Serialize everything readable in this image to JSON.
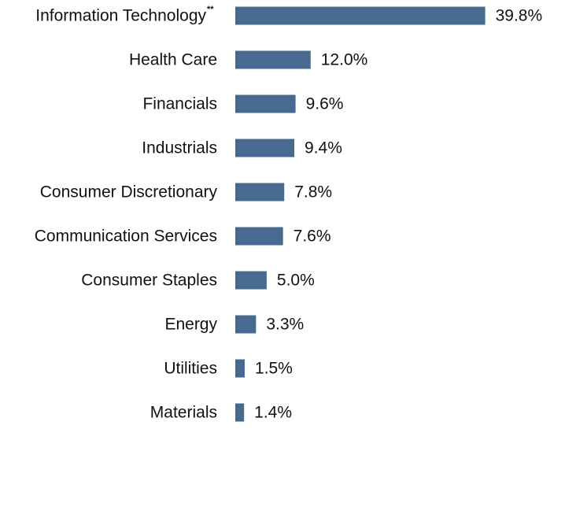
{
  "chart_data": {
    "type": "bar",
    "orientation": "horizontal",
    "title": "",
    "xlabel": "",
    "ylabel": "",
    "categories": [
      "Information Technology",
      "Health Care",
      "Financials",
      "Industrials",
      "Consumer Discretionary",
      "Communication Services",
      "Consumer Staples",
      "Energy",
      "Utilities",
      "Materials"
    ],
    "category_footnotes": [
      "**",
      "",
      "",
      "",
      "",
      "",
      "",
      "",
      "",
      ""
    ],
    "values": [
      39.8,
      12.0,
      9.6,
      9.4,
      7.8,
      7.6,
      5.0,
      3.3,
      1.5,
      1.4
    ],
    "value_labels": [
      "39.8%",
      "12.0%",
      "9.6%",
      "9.4%",
      "7.8%",
      "7.6%",
      "5.0%",
      "3.3%",
      "1.5%",
      "1.4%"
    ],
    "unit": "%",
    "grid": false,
    "legend": "none",
    "bar_color": "#476a8f"
  }
}
